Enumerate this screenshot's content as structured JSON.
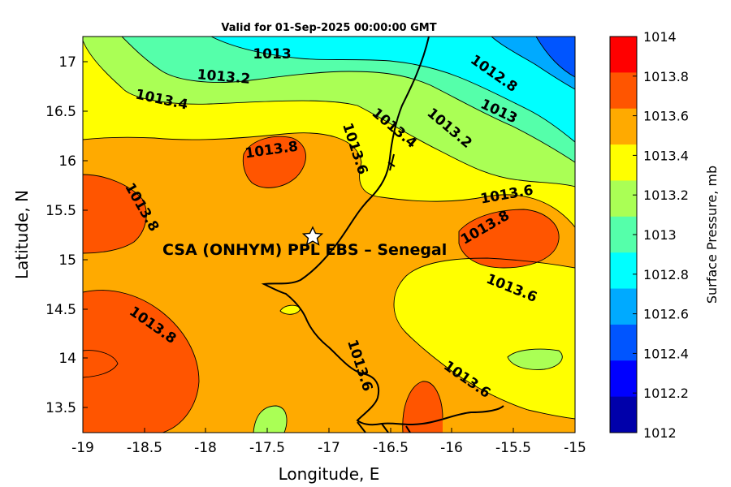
{
  "map": {
    "title": "Valid for 01-Sep-2025 00:00:00 GMT",
    "xlabel": "Longitude, E",
    "ylabel": "Latitude, N",
    "x_ticks": [
      "-19",
      "-18.5",
      "-18",
      "-17.5",
      "-17",
      "-16.5",
      "-16",
      "-15.5",
      "-15"
    ],
    "y_ticks": [
      "17",
      "16.5",
      "16",
      "15.5",
      "15",
      "14.5",
      "14",
      "13.5"
    ],
    "site_label": "CSA (ONHYM) PPL EBS  – Senegal",
    "contour_labels": [
      "1013",
      "1013.2",
      "1013.4",
      "1012.8",
      "1013",
      "1013.4",
      "1013.2",
      "1013.8",
      "1013.6",
      "1013.8",
      "1013.6",
      "1013.8",
      "1013.6",
      "1013.8",
      "1013.6",
      "1013.6"
    ],
    "colorbar": {
      "label": "Surface Pressure, mb",
      "ticks": [
        "1014",
        "1013.8",
        "1013.6",
        "1013.4",
        "1013.2",
        "1013",
        "1012.8",
        "1012.6",
        "1012.4",
        "1012.2",
        "1012"
      ],
      "colors": [
        "#ff0000",
        "#ff5500",
        "#ffaa00",
        "#ffff00",
        "#aaff55",
        "#55ffaa",
        "#00ffff",
        "#00aaff",
        "#0055ff",
        "#0000ff",
        "#0000aa"
      ]
    }
  },
  "colors": {
    "p1012_8": "#00ffff",
    "p1013_0": "#55ffaa",
    "p1013_2": "#aaff55",
    "p1013_4": "#ffff00",
    "p1013_6": "#ffaa00",
    "p1013_8": "#ff5500",
    "p1012_6": "#00aaff",
    "p1012_4": "#0055ff"
  }
}
